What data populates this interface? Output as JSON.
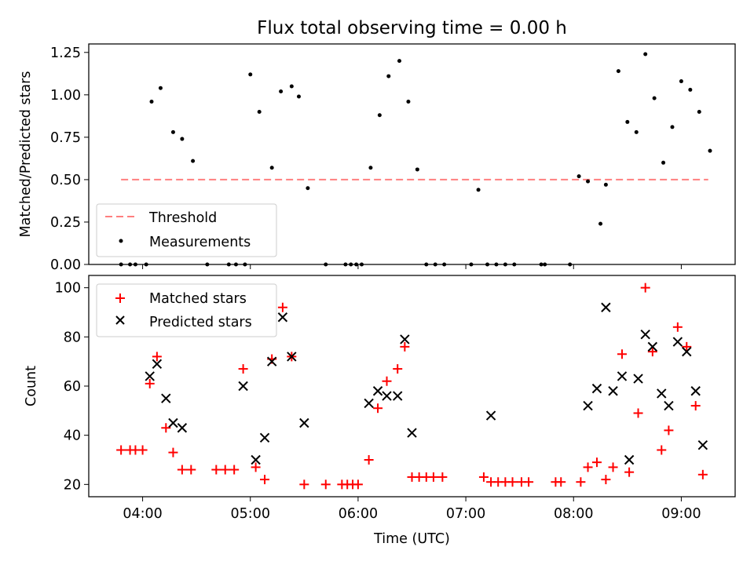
{
  "chart_data": [
    {
      "type": "scatter",
      "title": "Flux total observing time = 0.00 h",
      "xlabel": "",
      "ylabel": "Matched/Predicted stars",
      "ylim": [
        0,
        1.3
      ],
      "yticks": [
        0.0,
        0.25,
        0.5,
        0.75,
        1.0,
        1.25
      ],
      "ytick_labels": [
        "0.00",
        "0.25",
        "0.50",
        "0.75",
        "1.00",
        "1.25"
      ],
      "x_range": [
        "03:30",
        "09:30"
      ],
      "x_tick_times": [
        "04:00",
        "05:00",
        "06:00",
        "07:00",
        "08:00",
        "09:00"
      ],
      "grid": false,
      "legend_position": "lower-left",
      "threshold": {
        "name": "Threshold",
        "value": 0.5,
        "x": [
          "03:48",
          "09:15"
        ],
        "color": "#ff7f7f"
      },
      "series": [
        {
          "name": "Measurements",
          "color": "#000000",
          "points": [
            [
              "03:48",
              0.0
            ],
            [
              "03:53",
              0.0
            ],
            [
              "03:56",
              0.0
            ],
            [
              "04:02",
              0.0
            ],
            [
              "04:05",
              0.96
            ],
            [
              "04:10",
              1.04
            ],
            [
              "04:17",
              0.78
            ],
            [
              "04:22",
              0.74
            ],
            [
              "04:28",
              0.61
            ],
            [
              "04:36",
              0.0
            ],
            [
              "04:48",
              0.0
            ],
            [
              "04:52",
              0.0
            ],
            [
              "04:57",
              0.0
            ],
            [
              "05:00",
              1.12
            ],
            [
              "05:05",
              0.9
            ],
            [
              "05:12",
              0.57
            ],
            [
              "05:17",
              1.02
            ],
            [
              "05:23",
              1.05
            ],
            [
              "05:27",
              0.99
            ],
            [
              "05:32",
              0.45
            ],
            [
              "05:42",
              0.0
            ],
            [
              "05:53",
              0.0
            ],
            [
              "05:56",
              0.0
            ],
            [
              "05:59",
              0.0
            ],
            [
              "06:02",
              0.0
            ],
            [
              "06:07",
              0.57
            ],
            [
              "06:12",
              0.88
            ],
            [
              "06:17",
              1.11
            ],
            [
              "06:23",
              1.2
            ],
            [
              "06:28",
              0.96
            ],
            [
              "06:33",
              0.56
            ],
            [
              "06:38",
              0.0
            ],
            [
              "06:43",
              0.0
            ],
            [
              "06:48",
              0.0
            ],
            [
              "07:03",
              0.0
            ],
            [
              "07:07",
              0.44
            ],
            [
              "07:12",
              0.0
            ],
            [
              "07:17",
              0.0
            ],
            [
              "07:22",
              0.0
            ],
            [
              "07:27",
              0.0
            ],
            [
              "07:42",
              0.0
            ],
            [
              "07:44",
              0.0
            ],
            [
              "07:58",
              0.0
            ],
            [
              "08:03",
              0.52
            ],
            [
              "08:08",
              0.49
            ],
            [
              "08:15",
              0.24
            ],
            [
              "08:18",
              0.47
            ],
            [
              "08:25",
              1.14
            ],
            [
              "08:30",
              0.84
            ],
            [
              "08:35",
              0.78
            ],
            [
              "08:40",
              1.24
            ],
            [
              "08:45",
              0.98
            ],
            [
              "08:50",
              0.6
            ],
            [
              "08:55",
              0.81
            ],
            [
              "09:00",
              1.08
            ],
            [
              "09:05",
              1.03
            ],
            [
              "09:10",
              0.9
            ],
            [
              "09:16",
              0.67
            ]
          ]
        }
      ]
    },
    {
      "type": "scatter",
      "title": "",
      "xlabel": "Time (UTC)",
      "ylabel": "Count",
      "ylim": [
        15,
        105
      ],
      "yticks": [
        20,
        40,
        60,
        80,
        100
      ],
      "ytick_labels": [
        "20",
        "40",
        "60",
        "80",
        "100"
      ],
      "x_range": [
        "03:30",
        "09:30"
      ],
      "x_tick_times": [
        "04:00",
        "05:00",
        "06:00",
        "07:00",
        "08:00",
        "09:00"
      ],
      "xtick_labels": [
        "04:00",
        "05:00",
        "06:00",
        "07:00",
        "08:00",
        "09:00"
      ],
      "grid": false,
      "legend_position": "upper-left",
      "series": [
        {
          "name": "Matched stars",
          "marker": "plus",
          "color": "#ff0000",
          "points": [
            [
              "03:48",
              34
            ],
            [
              "03:53",
              34
            ],
            [
              "03:56",
              34
            ],
            [
              "04:00",
              34
            ],
            [
              "04:04",
              61
            ],
            [
              "04:08",
              72
            ],
            [
              "04:13",
              43
            ],
            [
              "04:17",
              33
            ],
            [
              "04:22",
              26
            ],
            [
              "04:27",
              26
            ],
            [
              "04:41",
              26
            ],
            [
              "04:46",
              26
            ],
            [
              "04:51",
              26
            ],
            [
              "04:56",
              67
            ],
            [
              "05:03",
              27
            ],
            [
              "05:08",
              22
            ],
            [
              "05:12",
              71
            ],
            [
              "05:18",
              92
            ],
            [
              "05:23",
              72
            ],
            [
              "05:30",
              20
            ],
            [
              "05:42",
              20
            ],
            [
              "05:51",
              20
            ],
            [
              "05:54",
              20
            ],
            [
              "05:57",
              20
            ],
            [
              "06:00",
              20
            ],
            [
              "06:06",
              30
            ],
            [
              "06:11",
              51
            ],
            [
              "06:16",
              62
            ],
            [
              "06:22",
              67
            ],
            [
              "06:26",
              76
            ],
            [
              "06:30",
              23
            ],
            [
              "06:34",
              23
            ],
            [
              "06:38",
              23
            ],
            [
              "06:42",
              23
            ],
            [
              "06:47",
              23
            ],
            [
              "07:10",
              23
            ],
            [
              "07:14",
              21
            ],
            [
              "07:18",
              21
            ],
            [
              "07:22",
              21
            ],
            [
              "07:26",
              21
            ],
            [
              "07:31",
              21
            ],
            [
              "07:35",
              21
            ],
            [
              "07:50",
              21
            ],
            [
              "07:53",
              21
            ],
            [
              "08:04",
              21
            ],
            [
              "08:08",
              27
            ],
            [
              "08:13",
              29
            ],
            [
              "08:18",
              22
            ],
            [
              "08:22",
              27
            ],
            [
              "08:27",
              73
            ],
            [
              "08:31",
              25
            ],
            [
              "08:36",
              49
            ],
            [
              "08:40",
              100
            ],
            [
              "08:44",
              74
            ],
            [
              "08:49",
              34
            ],
            [
              "08:53",
              42
            ],
            [
              "08:58",
              84
            ],
            [
              "09:03",
              76
            ],
            [
              "09:08",
              52
            ],
            [
              "09:12",
              24
            ]
          ]
        },
        {
          "name": "Predicted stars",
          "marker": "x",
          "color": "#000000",
          "points": [
            [
              "04:04",
              64
            ],
            [
              "04:08",
              69
            ],
            [
              "04:13",
              55
            ],
            [
              "04:17",
              45
            ],
            [
              "04:22",
              43
            ],
            [
              "04:56",
              60
            ],
            [
              "05:03",
              30
            ],
            [
              "05:08",
              39
            ],
            [
              "05:12",
              70
            ],
            [
              "05:18",
              88
            ],
            [
              "05:23",
              72
            ],
            [
              "05:30",
              45
            ],
            [
              "06:06",
              53
            ],
            [
              "06:11",
              58
            ],
            [
              "06:16",
              56
            ],
            [
              "06:22",
              56
            ],
            [
              "06:26",
              79
            ],
            [
              "06:30",
              41
            ],
            [
              "07:14",
              48
            ],
            [
              "08:08",
              52
            ],
            [
              "08:13",
              59
            ],
            [
              "08:18",
              92
            ],
            [
              "08:22",
              58
            ],
            [
              "08:27",
              64
            ],
            [
              "08:31",
              30
            ],
            [
              "08:36",
              63
            ],
            [
              "08:40",
              81
            ],
            [
              "08:44",
              76
            ],
            [
              "08:49",
              57
            ],
            [
              "08:53",
              52
            ],
            [
              "08:58",
              78
            ],
            [
              "09:03",
              74
            ],
            [
              "09:08",
              58
            ],
            [
              "09:12",
              36
            ]
          ]
        }
      ]
    }
  ]
}
